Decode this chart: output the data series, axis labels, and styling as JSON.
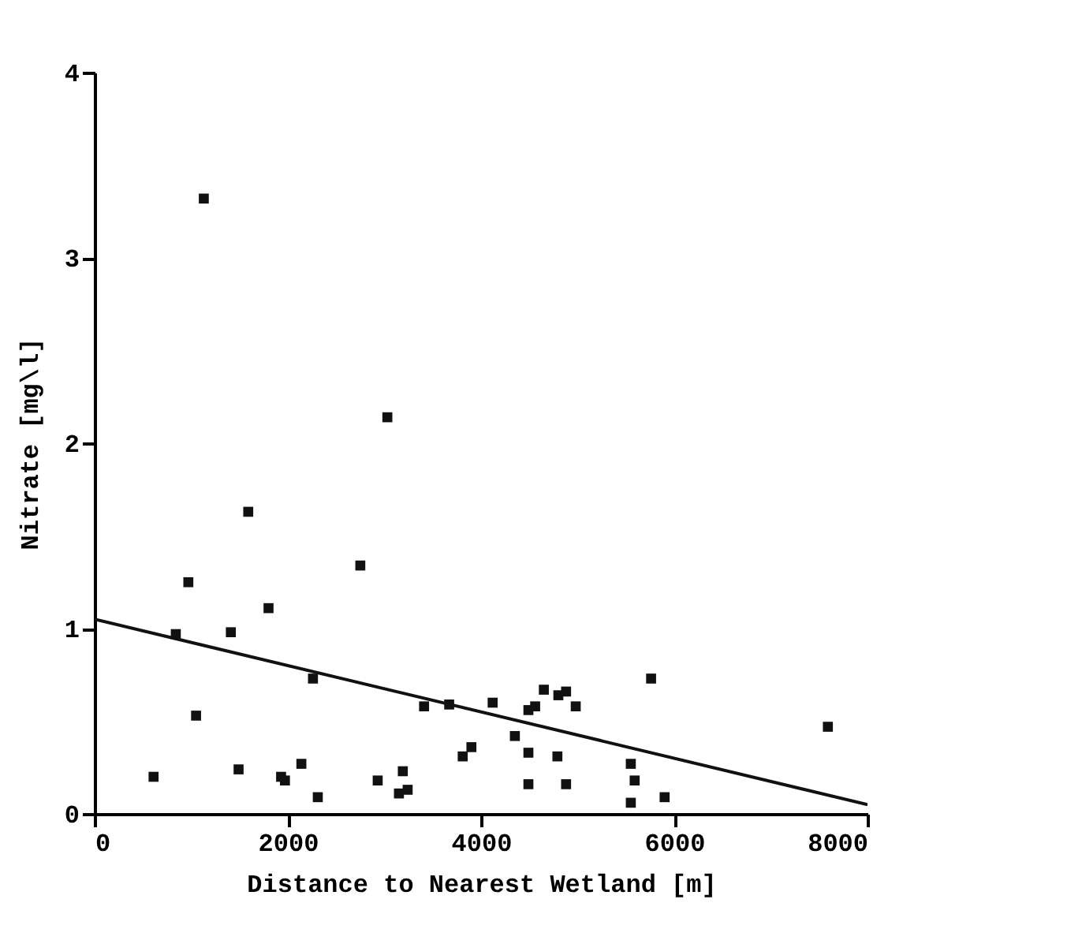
{
  "chart_data": {
    "type": "scatter",
    "xlabel": "Distance to Nearest Wetland [m]",
    "ylabel": "Nitrate  [mg\\l]",
    "xlim": [
      0,
      8000
    ],
    "ylim": [
      0,
      4
    ],
    "xticks": [
      0,
      2000,
      4000,
      6000,
      8000
    ],
    "yticks": [
      0,
      1,
      2,
      3,
      4
    ],
    "grid": false,
    "marker": "square",
    "series": [
      {
        "color": "#111111",
        "x": [
          1130,
          3030,
          1590,
          2750,
          970,
          1800,
          840,
          1410,
          2260,
          1050,
          3410,
          3670,
          610,
          1490,
          1930,
          1970,
          2140,
          2310,
          2930,
          3190,
          3150,
          3240,
          3810,
          3900,
          4120,
          4650,
          4800,
          4880,
          4980,
          4490,
          4560,
          4350,
          4490,
          4790,
          4490,
          4880,
          5550,
          5590,
          5550,
          5900,
          5760,
          7590
        ],
        "values": [
          3.32,
          2.14,
          1.63,
          1.34,
          1.25,
          1.11,
          0.97,
          0.98,
          0.73,
          0.53,
          0.58,
          0.59,
          0.2,
          0.24,
          0.2,
          0.18,
          0.27,
          0.09,
          0.18,
          0.23,
          0.11,
          0.13,
          0.31,
          0.36,
          0.6,
          0.67,
          0.64,
          0.66,
          0.58,
          0.56,
          0.58,
          0.42,
          0.33,
          0.31,
          0.16,
          0.16,
          0.27,
          0.18,
          0.06,
          0.09,
          0.73,
          0.47
        ]
      },
      {
        "type": "line",
        "marker": "none",
        "color": "#111111",
        "x": [
          0,
          8000
        ],
        "values": [
          1.05,
          0.05
        ]
      }
    ]
  }
}
